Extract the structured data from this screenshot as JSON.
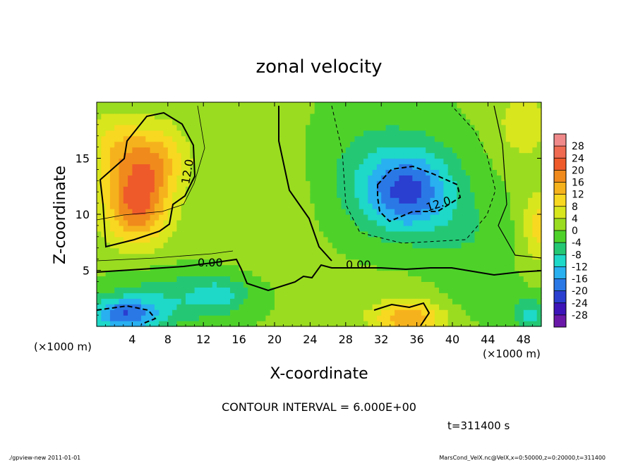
{
  "chart_data": {
    "type": "heatmap",
    "title": "zonal velocity",
    "xlabel": "X-coordinate",
    "ylabel": "Z-coordinate",
    "x_unit": "(×1000 m)",
    "y_unit": "(×1000 m)",
    "xlim": [
      0,
      50
    ],
    "ylim": [
      0,
      20
    ],
    "x_ticks": [
      4,
      8,
      12,
      16,
      20,
      24,
      28,
      32,
      36,
      40,
      44,
      48
    ],
    "y_ticks": [
      5,
      10,
      15
    ],
    "colorbar": {
      "labels": [
        28,
        24,
        20,
        16,
        12,
        8,
        4,
        0,
        -4,
        -8,
        -12,
        -16,
        -20,
        -24,
        -28
      ],
      "colors": [
        "#f08a8a",
        "#ef6a50",
        "#ef5a2a",
        "#f08a1c",
        "#f6b21c",
        "#f8d820",
        "#d8e61e",
        "#9adc20",
        "#4ed22a",
        "#24c874",
        "#1ed8c8",
        "#28b0f0",
        "#2a78e6",
        "#2a3ed0",
        "#3c14b8",
        "#6a18a8"
      ]
    },
    "contour_interval": "CONTOUR INTERVAL = 6.000E+00",
    "contour_labels": [
      "12.0",
      "0.00",
      "0.00",
      "12.0"
    ],
    "blobs": [
      {
        "x": 4.5,
        "z": 11,
        "sx": 3.5,
        "sz": 3.5,
        "v": 20
      },
      {
        "x": 6.5,
        "z": 15,
        "sx": 3.5,
        "sz": 3,
        "v": 12
      },
      {
        "x": 2,
        "z": 16,
        "sx": 3,
        "sz": 3,
        "v": 8
      },
      {
        "x": 35,
        "z": 12,
        "sx": 5,
        "sz": 3.5,
        "v": -18
      },
      {
        "x": 32,
        "z": 14,
        "sx": 9,
        "sz": 6,
        "v": -6
      },
      {
        "x": 42,
        "z": 8,
        "sx": 5,
        "sz": 4,
        "v": -4
      },
      {
        "x": 3,
        "z": 1,
        "sx": 4,
        "sz": 1.5,
        "v": -18
      },
      {
        "x": 9,
        "z": 2.5,
        "sx": 8,
        "sz": 2.5,
        "v": -8
      },
      {
        "x": 14,
        "z": 3,
        "sx": 3,
        "sz": 1.5,
        "v": -6
      },
      {
        "x": 35,
        "z": 0.8,
        "sx": 4,
        "sz": 1.5,
        "v": 14
      },
      {
        "x": 44,
        "z": 2.5,
        "sx": 4,
        "sz": 2,
        "v": -4
      },
      {
        "x": 49,
        "z": 1,
        "sx": 2,
        "sz": 1.5,
        "v": -10
      },
      {
        "x": 50,
        "z": 9,
        "sx": 2,
        "sz": 3,
        "v": 10
      },
      {
        "x": 48,
        "z": 18,
        "sx": 3,
        "sz": 3,
        "v": 6
      },
      {
        "x": 20,
        "z": 12,
        "sx": 5,
        "sz": 6,
        "v": 3
      }
    ],
    "base_value": 1,
    "time_label": "t=311400 s"
  },
  "footer": {
    "left": "./gpview-new   2011-01-01",
    "right": "MarsCond_VelX.nc@VelX,x=0:50000,z=0:20000,t=311400"
  }
}
